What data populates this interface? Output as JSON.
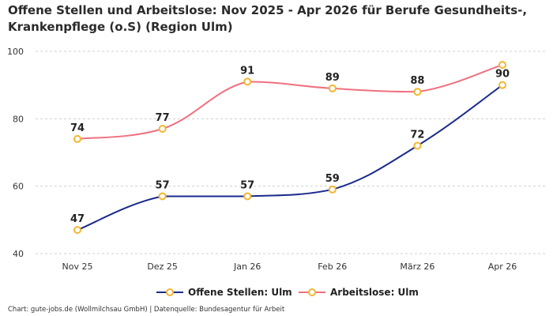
{
  "title": "Offene Stellen und Arbeitslose: Nov 2025 - Apr 2026 für Berufe Gesundheits-, Krankenpflege (o.S) (Region Ulm)",
  "footer": "Chart: gute-jobs.de (Wollmilchsau GmbH) | Datenquelle: Bundesagentur für Arbeit",
  "chart_data": {
    "type": "line",
    "title": "Offene Stellen und Arbeitslose: Nov 2025 - Apr 2026 für Berufe Gesundheits-, Krankenpflege (o.S) (Region Ulm)",
    "categories": [
      "Nov 25",
      "Dez 25",
      "Jan 26",
      "Feb 26",
      "März 26",
      "Apr 26"
    ],
    "ylim": [
      40,
      100
    ],
    "yticks": [
      40,
      60,
      80,
      100
    ],
    "grid": true,
    "legend_position": "bottom",
    "series": [
      {
        "name": "Offene Stellen: Ulm",
        "color": "#1a2a8c",
        "values": [
          47,
          57,
          57,
          59,
          72,
          90
        ],
        "labels": [
          "47",
          "57",
          "57",
          "59",
          "72",
          "90"
        ]
      },
      {
        "name": "Arbeitslose: Ulm",
        "color": "#f0707f",
        "values": [
          74,
          77,
          91,
          89,
          88,
          96
        ],
        "labels": [
          "74",
          "77",
          "91",
          "89",
          "88",
          ""
        ]
      }
    ],
    "marker_color": "#f2b632"
  }
}
